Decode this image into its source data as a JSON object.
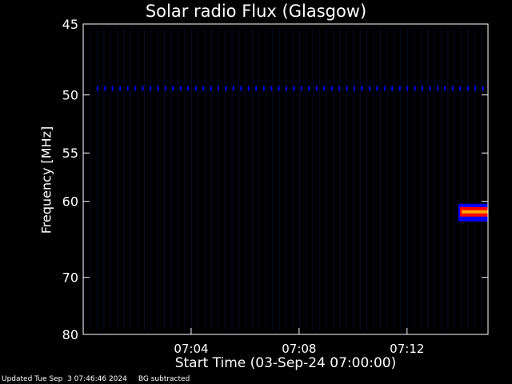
{
  "chart_data": {
    "type": "heatmap",
    "title": "Solar radio Flux (Glasgow)",
    "xlabel": "Start Time (03-Sep-24 07:00:00)",
    "ylabel": "Frequency [MHz]",
    "x_range_minutes": [
      0,
      15.0
    ],
    "x_ticks": [
      {
        "minute": 4,
        "label": "07:04"
      },
      {
        "minute": 8,
        "label": "07:08"
      },
      {
        "minute": 12,
        "label": "07:12"
      }
    ],
    "y_range_mhz": [
      45,
      80
    ],
    "y_scale": "inverted-log",
    "y_ticks": [
      {
        "value": 45,
        "label": "45"
      },
      {
        "value": 50,
        "label": "50"
      },
      {
        "value": 55,
        "label": "55"
      },
      {
        "value": 60,
        "label": "60"
      },
      {
        "value": 70,
        "label": "70"
      },
      {
        "value": 80,
        "label": "80"
      }
    ],
    "features": {
      "interference_line_mhz": 49.5,
      "burst": {
        "start_minute": 13.9,
        "end_minute": 15.0,
        "freq_center_mhz": 61.2,
        "freq_width_mhz": 1.2
      }
    },
    "colors": {
      "background": "#000000",
      "low": "#0000ff",
      "high": "#ff0000",
      "mid": "#ffa500"
    }
  },
  "footer": {
    "updated": "Updated Tue Sep  3 07:46:46 2024",
    "note": "BG subtracted"
  }
}
